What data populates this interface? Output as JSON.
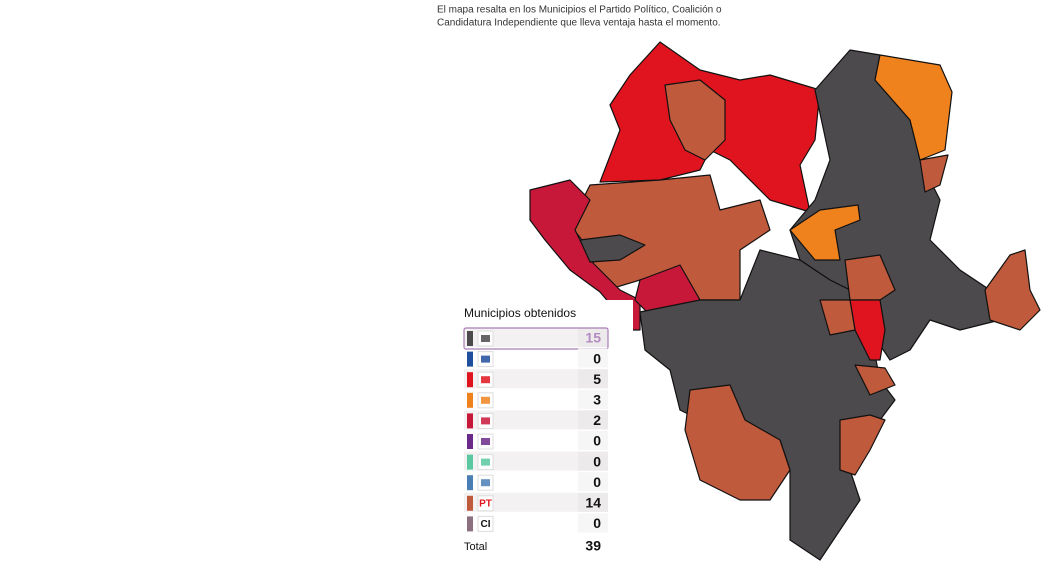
{
  "description": [
    "El mapa resalta en los Municipios el Partido Político, Coalición o",
    "Candidatura Independiente que lleva ventaja hasta el momento."
  ],
  "legend": {
    "title": "Municipios obtenidos",
    "rows": [
      {
        "color": "#4d4a4d",
        "count": 15
      },
      {
        "color": "#1f4e9c",
        "count": 0
      },
      {
        "color": "#e0141e",
        "count": 5
      },
      {
        "color": "#f0821e",
        "count": 3
      },
      {
        "color": "#c8183a",
        "count": 2
      },
      {
        "color": "#6b2a8a",
        "count": 0
      },
      {
        "color": "#5ac8a0",
        "count": 0
      },
      {
        "color": "#4a7fb5",
        "count": 0
      },
      {
        "color": "#c05a3c",
        "count": 14,
        "logo_text": "PT"
      },
      {
        "color": "#8c7080",
        "count": 0,
        "logo_text": "CI"
      }
    ],
    "total_label": "Total",
    "total": 39
  }
}
